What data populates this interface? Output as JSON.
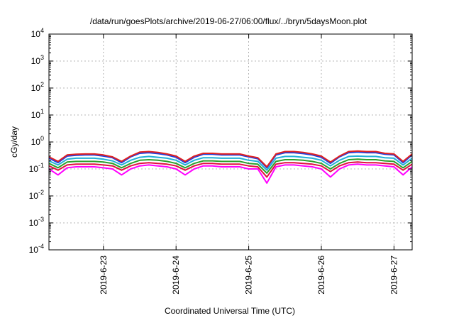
{
  "chart_data": {
    "type": "line",
    "title": "/data/run/goesPlots/archive/2019-06-27/06:00/flux/../bryn/5daysMoon.plot",
    "xlabel": "Coordinated Universal Time (UTC)",
    "ylabel": "cGy/day",
    "yscale": "log",
    "ylim": [
      0.0001,
      10000
    ],
    "xlim": [
      "2019-06-22T06:00",
      "2019-06-27T06:00"
    ],
    "grid": true,
    "x_ticks": [
      "2019-6-23",
      "2019-6-24",
      "2019-6-25",
      "2019-6-26",
      "2019-6-27"
    ],
    "x_tick_dates": [
      "2019-06-23T00:00",
      "2019-06-24T00:00",
      "2019-06-25T00:00",
      "2019-06-26T00:00",
      "2019-06-27T00:00"
    ],
    "y_ticks": [
      {
        "base": "10",
        "exp": "-4",
        "value": 0.0001
      },
      {
        "base": "10",
        "exp": "-3",
        "value": 0.001
      },
      {
        "base": "10",
        "exp": "-2",
        "value": 0.01
      },
      {
        "base": "10",
        "exp": "-1",
        "value": 0.1
      },
      {
        "base": "10",
        "exp": "0",
        "value": 1
      },
      {
        "base": "10",
        "exp": "1",
        "value": 10
      },
      {
        "base": "10",
        "exp": "2",
        "value": 100
      },
      {
        "base": "10",
        "exp": "3",
        "value": 1000
      },
      {
        "base": "10",
        "exp": "4",
        "value": 10000
      }
    ],
    "x": [
      "2019-06-22T06:00",
      "2019-06-22T09:00",
      "2019-06-22T12:00",
      "2019-06-22T15:00",
      "2019-06-22T18:00",
      "2019-06-22T21:00",
      "2019-06-23T00:00",
      "2019-06-23T03:00",
      "2019-06-23T06:00",
      "2019-06-23T09:00",
      "2019-06-23T12:00",
      "2019-06-23T15:00",
      "2019-06-23T18:00",
      "2019-06-23T21:00",
      "2019-06-24T00:00",
      "2019-06-24T03:00",
      "2019-06-24T06:00",
      "2019-06-24T09:00",
      "2019-06-24T12:00",
      "2019-06-24T15:00",
      "2019-06-24T18:00",
      "2019-06-24T21:00",
      "2019-06-25T00:00",
      "2019-06-25T03:00",
      "2019-06-25T06:00",
      "2019-06-25T09:00",
      "2019-06-25T12:00",
      "2019-06-25T15:00",
      "2019-06-25T18:00",
      "2019-06-25T21:00",
      "2019-06-26T00:00",
      "2019-06-26T03:00",
      "2019-06-26T06:00",
      "2019-06-26T09:00",
      "2019-06-26T12:00",
      "2019-06-26T15:00",
      "2019-06-26T18:00",
      "2019-06-26T21:00",
      "2019-06-27T00:00",
      "2019-06-27T03:00",
      "2019-06-27T06:00"
    ],
    "series": [
      {
        "color": "#ff00ff",
        "values": [
          0.1,
          0.06,
          0.11,
          0.12,
          0.12,
          0.12,
          0.11,
          0.1,
          0.06,
          0.1,
          0.13,
          0.14,
          0.13,
          0.12,
          0.1,
          0.06,
          0.1,
          0.13,
          0.13,
          0.12,
          0.12,
          0.12,
          0.1,
          0.1,
          0.03,
          0.12,
          0.14,
          0.14,
          0.13,
          0.12,
          0.1,
          0.05,
          0.1,
          0.14,
          0.15,
          0.14,
          0.14,
          0.13,
          0.12,
          0.06,
          0.12
        ]
      },
      {
        "color": "#e0103c",
        "values": [
          0.13,
          0.09,
          0.14,
          0.15,
          0.15,
          0.15,
          0.14,
          0.13,
          0.09,
          0.13,
          0.16,
          0.17,
          0.16,
          0.15,
          0.13,
          0.09,
          0.13,
          0.16,
          0.16,
          0.15,
          0.15,
          0.15,
          0.13,
          0.12,
          0.05,
          0.15,
          0.17,
          0.17,
          0.16,
          0.15,
          0.13,
          0.08,
          0.13,
          0.17,
          0.18,
          0.17,
          0.17,
          0.16,
          0.15,
          0.09,
          0.15
        ]
      },
      {
        "color": "#2ca02c",
        "values": [
          0.16,
          0.11,
          0.18,
          0.19,
          0.19,
          0.19,
          0.18,
          0.16,
          0.11,
          0.16,
          0.21,
          0.22,
          0.21,
          0.19,
          0.16,
          0.11,
          0.16,
          0.2,
          0.2,
          0.19,
          0.19,
          0.19,
          0.16,
          0.15,
          0.07,
          0.19,
          0.22,
          0.22,
          0.21,
          0.19,
          0.16,
          0.1,
          0.16,
          0.22,
          0.23,
          0.22,
          0.22,
          0.2,
          0.19,
          0.11,
          0.19
        ]
      },
      {
        "color": "#20b0d8",
        "values": [
          0.2,
          0.14,
          0.23,
          0.25,
          0.25,
          0.25,
          0.23,
          0.2,
          0.14,
          0.21,
          0.27,
          0.29,
          0.27,
          0.25,
          0.21,
          0.14,
          0.21,
          0.26,
          0.26,
          0.25,
          0.25,
          0.25,
          0.21,
          0.19,
          0.09,
          0.25,
          0.29,
          0.29,
          0.27,
          0.25,
          0.21,
          0.13,
          0.21,
          0.29,
          0.3,
          0.29,
          0.29,
          0.26,
          0.25,
          0.14,
          0.25
        ]
      },
      {
        "color": "#2040e0",
        "values": [
          0.25,
          0.17,
          0.3,
          0.32,
          0.33,
          0.33,
          0.3,
          0.26,
          0.17,
          0.28,
          0.38,
          0.4,
          0.37,
          0.33,
          0.27,
          0.17,
          0.27,
          0.35,
          0.35,
          0.33,
          0.33,
          0.33,
          0.28,
          0.24,
          0.11,
          0.33,
          0.4,
          0.4,
          0.37,
          0.33,
          0.27,
          0.16,
          0.28,
          0.4,
          0.42,
          0.4,
          0.4,
          0.35,
          0.33,
          0.17,
          0.33
        ]
      },
      {
        "color": "#e02020",
        "values": [
          0.28,
          0.19,
          0.33,
          0.35,
          0.36,
          0.36,
          0.33,
          0.28,
          0.19,
          0.3,
          0.42,
          0.44,
          0.41,
          0.36,
          0.3,
          0.19,
          0.3,
          0.38,
          0.38,
          0.36,
          0.36,
          0.36,
          0.3,
          0.26,
          0.12,
          0.36,
          0.44,
          0.44,
          0.41,
          0.36,
          0.3,
          0.18,
          0.3,
          0.44,
          0.46,
          0.44,
          0.44,
          0.38,
          0.36,
          0.19,
          0.36
        ]
      }
    ]
  }
}
